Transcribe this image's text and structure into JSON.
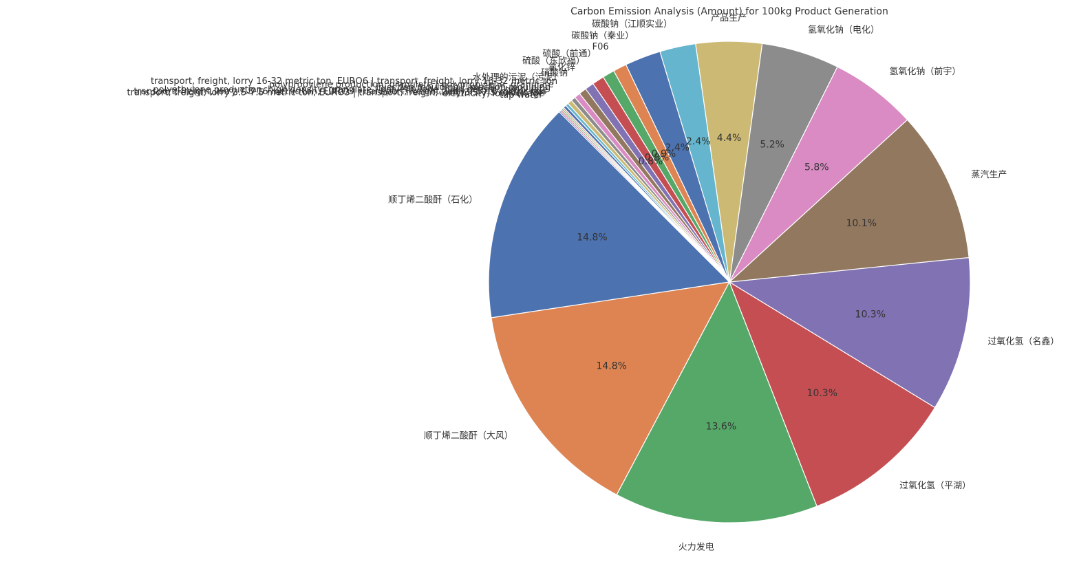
{
  "chart_data": {
    "type": "pie",
    "title": "Carbon Emission Analysis (Amount) for 100kg Product Generation",
    "start_angle_deg": 135,
    "direction": "counterclockwise",
    "legend": "none",
    "slices": [
      {
        "label": "顺丁烯二酸酐（石化）",
        "value": 14.8,
        "pct_label": "14.8%",
        "color": "#4c72b0"
      },
      {
        "label": "顺丁烯二酸酐（大风）",
        "value": 14.8,
        "pct_label": "14.8%",
        "color": "#dd8452"
      },
      {
        "label": "火力发电",
        "value": 13.6,
        "pct_label": "13.6%",
        "color": "#55a868"
      },
      {
        "label": "过氧化氢（平湖）",
        "value": 10.3,
        "pct_label": "10.3%",
        "color": "#c44e52"
      },
      {
        "label": "过氧化氢（名鑫）",
        "value": 10.3,
        "pct_label": "10.3%",
        "color": "#8172b3"
      },
      {
        "label": "蒸汽生产",
        "value": 10.1,
        "pct_label": "10.1%",
        "color": "#937860"
      },
      {
        "label": "氢氧化钠（前宇）",
        "value": 5.8,
        "pct_label": "5.8%",
        "color": "#da8bc3"
      },
      {
        "label": "氢氧化钠（电化）",
        "value": 5.2,
        "pct_label": "5.2%",
        "color": "#8c8c8c"
      },
      {
        "label": "产品生产",
        "value": 4.4,
        "pct_label": "4.4%",
        "color": "#ccb974"
      },
      {
        "label": "碳酸钠（江顺实业）",
        "value": 2.4,
        "pct_label": "2.4%",
        "color": "#64b5cd"
      },
      {
        "label": "碳酸钠（秦业）",
        "value": 2.4,
        "pct_label": "2.4%",
        "color": "#4c72b0"
      },
      {
        "label": "F06",
        "value": 0.9,
        "pct_label": "0.9%",
        "color": "#dd8452"
      },
      {
        "label": "硫酸（前通）",
        "value": 0.8,
        "pct_label": "0.8%",
        "color": "#55a868"
      },
      {
        "label": "硫酸（东欣福）",
        "value": 0.8,
        "pct_label": "0.8%",
        "color": "#c44e52"
      },
      {
        "label": "氯化锌",
        "value": 0.6,
        "pct_label": "",
        "color": "#8172b3"
      },
      {
        "label": "硝酸钠",
        "value": 0.5,
        "pct_label": "",
        "color": "#937860"
      },
      {
        "label": "水处理的污泥（污泥）",
        "value": 0.4,
        "pct_label": "",
        "color": "#da8bc3"
      },
      {
        "label": "transport, freight, lorry 16-32 metric ton, EURO6 | transport, freight, lorry 16-32 metric ton",
        "value": 0.3,
        "pct_label": "",
        "color": "#8c8c8c"
      },
      {
        "label": "polypropylene production, granulate | polypropylene, granulate",
        "value": 0.3,
        "pct_label": "",
        "color": "#ccb974"
      },
      {
        "label": "injection moulding | injection moulding",
        "value": 0.2,
        "pct_label": "",
        "color": "#64b5cd"
      },
      {
        "label": "polyethylene production, high density, granulate | polyethylene, high density, granulate",
        "value": 0.2,
        "pct_label": "",
        "color": "#4c72b0"
      },
      {
        "label": "transport, freight, lorry 7.5-16 metric ton, EURO3 | transport, freight, lorry 7.5-16 metric ton",
        "value": 0.1,
        "pct_label": "",
        "color": "#dd8452"
      },
      {
        "label": "transport, freight, lorry 3.5-7.5 metric ton, EURO3 | transport, freight, lorry 3.5-7.5 metric ton",
        "value": 0.1,
        "pct_label": "",
        "color": "#55a868"
      },
      {
        "label": "electricity, low voltage",
        "value": 0.1,
        "pct_label": "",
        "color": "#c44e52"
      },
      {
        "label": "tap water",
        "value": 0.1,
        "pct_label": "",
        "color": "#8172b3"
      }
    ]
  }
}
